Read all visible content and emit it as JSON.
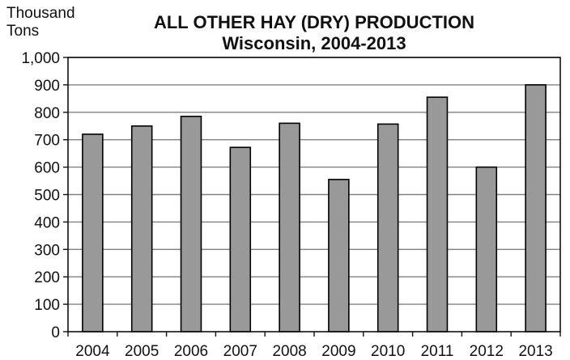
{
  "chart_data": {
    "type": "bar",
    "title": "ALL OTHER HAY (DRY) PRODUCTION",
    "subtitle": "Wisconsin, 2004-2013",
    "ylabel_line1": "Thousand",
    "ylabel_line2": "Tons",
    "xlabel": "",
    "categories": [
      "2004",
      "2005",
      "2006",
      "2007",
      "2008",
      "2009",
      "2010",
      "2011",
      "2012",
      "2013"
    ],
    "values": [
      720,
      750,
      785,
      672,
      760,
      555,
      757,
      855,
      600,
      900
    ],
    "ylim": [
      0,
      1000
    ],
    "yticks": [
      0,
      100,
      200,
      300,
      400,
      500,
      600,
      700,
      800,
      900,
      1000
    ],
    "ytick_labels": [
      "0",
      "100",
      "200",
      "300",
      "400",
      "500",
      "600",
      "700",
      "800",
      "900",
      "1,000"
    ],
    "grid": true,
    "legend": "none",
    "bar_color": "#999999"
  }
}
